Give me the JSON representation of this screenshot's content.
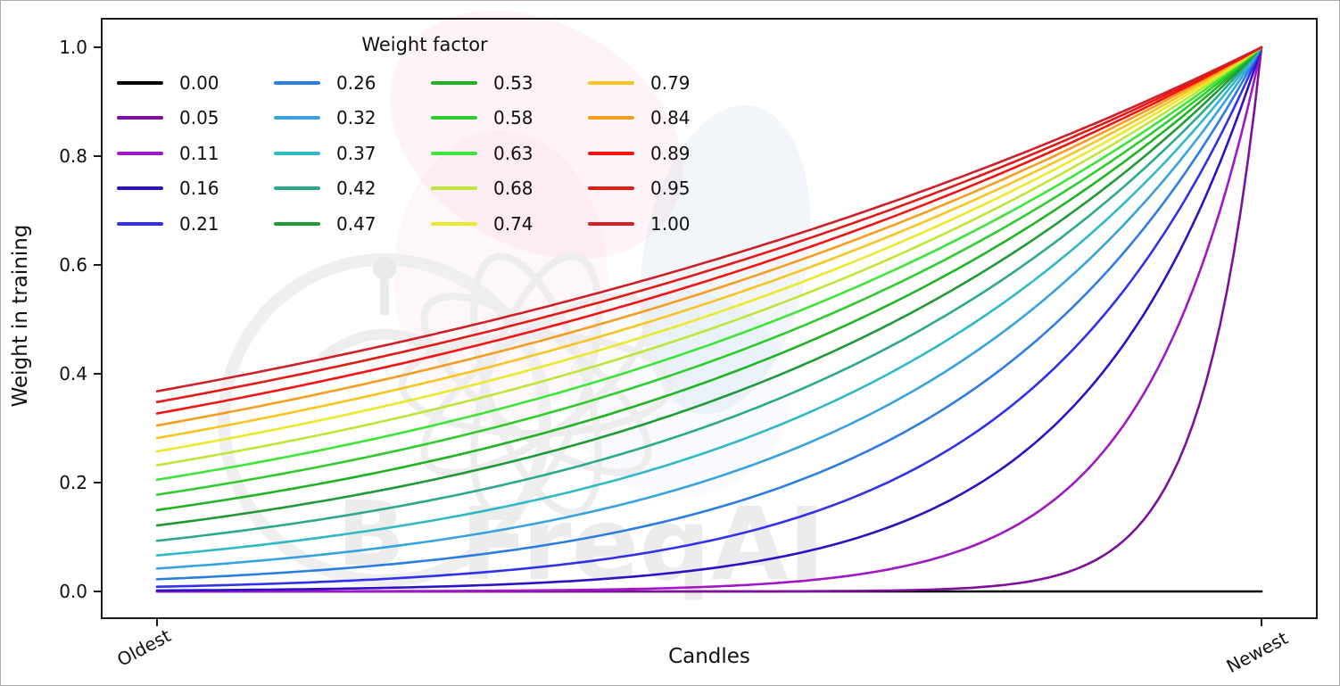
{
  "watermark": {
    "text": "FreqAI",
    "logo_glyph": "B"
  },
  "chart_data": {
    "type": "line",
    "title": "",
    "xlabel": "Candles",
    "ylabel": "Weight in training",
    "xtick_labels": [
      "Oldest",
      "Newest"
    ],
    "ytick_labels": [
      "0.0",
      "0.2",
      "0.4",
      "0.6",
      "0.8",
      "1.0"
    ],
    "ytick_values": [
      0.0,
      0.2,
      0.4,
      0.6,
      0.8,
      1.0
    ],
    "xlim_data": [
      0,
      1
    ],
    "ylim_data": [
      0,
      1
    ],
    "grid": false,
    "legend": {
      "title": "Weight factor",
      "position": "upper left",
      "ncols": 4,
      "frame": false,
      "fill_order": "column-major"
    },
    "formula": "weight(x) = exp(-(1 - x) / weight_factor); x=0 at oldest candle, x=1 at newest; weight_factor values are linspace(0,1,20)",
    "x_samples": [
      0,
      0.1,
      0.2,
      0.3,
      0.4,
      0.5,
      0.6,
      0.7,
      0.8,
      0.9,
      1.0
    ],
    "series": [
      {
        "label": "0.00",
        "factor": 0,
        "color": "#000000",
        "values": [
          0,
          0,
          0,
          0,
          0,
          0,
          0,
          0,
          0,
          0,
          1
        ]
      },
      {
        "label": "0.05",
        "factor": 0.0526,
        "color": "#7d0f9b",
        "values": [
          0,
          0,
          0,
          0,
          0,
          0,
          0.001,
          0.003,
          0.022,
          0.15,
          1
        ]
      },
      {
        "label": "0.11",
        "factor": 0.1053,
        "color": "#a018c6",
        "values": [
          0,
          0,
          0.001,
          0.001,
          0.003,
          0.009,
          0.022,
          0.058,
          0.15,
          0.387,
          1
        ]
      },
      {
        "label": "0.16",
        "factor": 0.1579,
        "color": "#2b12c4",
        "values": [
          0.002,
          0.003,
          0.006,
          0.012,
          0.022,
          0.042,
          0.079,
          0.15,
          0.282,
          0.531,
          1
        ]
      },
      {
        "label": "0.21",
        "factor": 0.2105,
        "color": "#3131ec",
        "values": [
          0.009,
          0.014,
          0.022,
          0.036,
          0.058,
          0.093,
          0.15,
          0.24,
          0.387,
          0.622,
          1
        ]
      },
      {
        "label": "0.26",
        "factor": 0.2632,
        "color": "#2b7de2",
        "values": [
          0.022,
          0.033,
          0.048,
          0.07,
          0.102,
          0.15,
          0.219,
          0.32,
          0.468,
          0.684,
          1
        ]
      },
      {
        "label": "0.32",
        "factor": 0.3158,
        "color": "#36a3de",
        "values": [
          0.042,
          0.058,
          0.079,
          0.109,
          0.15,
          0.205,
          0.282,
          0.387,
          0.531,
          0.729,
          1
        ]
      },
      {
        "label": "0.37",
        "factor": 0.3684,
        "color": "#2fb9c6",
        "values": [
          0.066,
          0.087,
          0.114,
          0.15,
          0.196,
          0.257,
          0.338,
          0.443,
          0.581,
          0.762,
          1
        ]
      },
      {
        "label": "0.42",
        "factor": 0.4211,
        "color": "#2ba98c",
        "values": [
          0.093,
          0.118,
          0.15,
          0.19,
          0.24,
          0.305,
          0.387,
          0.49,
          0.622,
          0.789,
          1
        ]
      },
      {
        "label": "0.47",
        "factor": 0.4737,
        "color": "#1f9a36",
        "values": [
          0.121,
          0.15,
          0.185,
          0.228,
          0.282,
          0.348,
          0.43,
          0.531,
          0.656,
          0.81,
          1
        ]
      },
      {
        "label": "0.53",
        "factor": 0.5263,
        "color": "#1fb423",
        "values": [
          0.15,
          0.181,
          0.219,
          0.264,
          0.32,
          0.387,
          0.468,
          0.565,
          0.684,
          0.827,
          1
        ]
      },
      {
        "label": "0.58",
        "factor": 0.5789,
        "color": "#2ecc2c",
        "values": [
          0.178,
          0.211,
          0.251,
          0.298,
          0.355,
          0.422,
          0.501,
          0.596,
          0.708,
          0.841,
          1
        ]
      },
      {
        "label": "0.63",
        "factor": 0.6316,
        "color": "#3ce636",
        "values": [
          0.205,
          0.24,
          0.282,
          0.33,
          0.387,
          0.453,
          0.531,
          0.622,
          0.729,
          0.854,
          1
        ]
      },
      {
        "label": "0.68",
        "factor": 0.6842,
        "color": "#bfe634",
        "values": [
          0.232,
          0.268,
          0.311,
          0.359,
          0.416,
          0.481,
          0.557,
          0.645,
          0.747,
          0.864,
          1
        ]
      },
      {
        "label": "0.74",
        "factor": 0.7368,
        "color": "#ece82a",
        "values": [
          0.257,
          0.295,
          0.338,
          0.387,
          0.443,
          0.507,
          0.581,
          0.666,
          0.762,
          0.873,
          1
        ]
      },
      {
        "label": "0.79",
        "factor": 0.7895,
        "color": "#f7c51e",
        "values": [
          0.282,
          0.32,
          0.363,
          0.412,
          0.468,
          0.531,
          0.602,
          0.684,
          0.776,
          0.881,
          1
        ]
      },
      {
        "label": "0.84",
        "factor": 0.8421,
        "color": "#f59d1e",
        "values": [
          0.305,
          0.343,
          0.387,
          0.435,
          0.49,
          0.552,
          0.622,
          0.7,
          0.789,
          0.888,
          1
        ]
      },
      {
        "label": "0.89",
        "factor": 0.8947,
        "color": "#f31310",
        "values": [
          0.327,
          0.366,
          0.409,
          0.457,
          0.511,
          0.572,
          0.64,
          0.715,
          0.8,
          0.894,
          1
        ]
      },
      {
        "label": "0.95",
        "factor": 0.9474,
        "color": "#e21a16",
        "values": [
          0.348,
          0.387,
          0.43,
          0.478,
          0.531,
          0.59,
          0.656,
          0.729,
          0.81,
          0.9,
          1
        ]
      },
      {
        "label": "1.00",
        "factor": 1.0,
        "color": "#d01f26",
        "values": [
          0.368,
          0.407,
          0.449,
          0.497,
          0.549,
          0.607,
          0.67,
          0.741,
          0.819,
          0.905,
          1
        ]
      }
    ]
  }
}
